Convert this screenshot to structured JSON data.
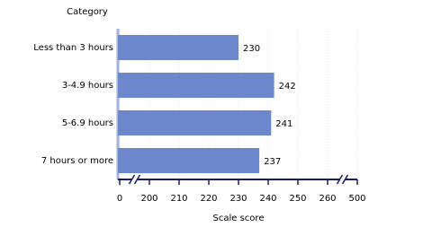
{
  "chart_data": {
    "type": "bar",
    "orientation": "horizontal",
    "y_axis_label": "Category",
    "x_axis_label": "Scale score",
    "categories": [
      "Less than 3 hours",
      "3-4.9 hours",
      "5-6.9 hours",
      "7 hours or more"
    ],
    "values": [
      230,
      242,
      241,
      237
    ],
    "color": "#6d87cc",
    "xlim": [
      0,
      500
    ],
    "xticks": [
      0,
      200,
      210,
      220,
      230,
      240,
      250,
      260,
      500
    ],
    "axis_break": true,
    "grid": true
  }
}
